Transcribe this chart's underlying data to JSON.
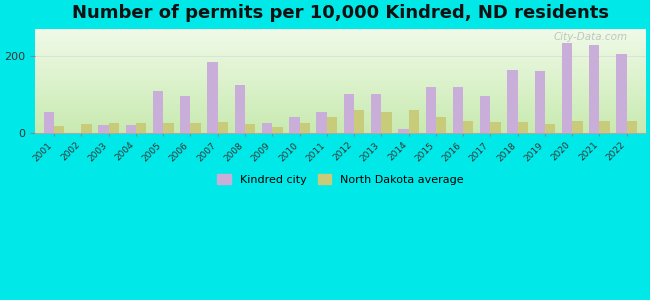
{
  "title": "Number of permits per 10,000 Kindred, ND residents",
  "years": [
    2001,
    2002,
    2003,
    2004,
    2005,
    2006,
    2007,
    2008,
    2009,
    2010,
    2011,
    2012,
    2013,
    2014,
    2015,
    2016,
    2017,
    2018,
    2019,
    2020,
    2021,
    2022
  ],
  "kindred": [
    55,
    0,
    20,
    20,
    110,
    95,
    185,
    125,
    25,
    40,
    55,
    100,
    100,
    10,
    120,
    120,
    95,
    165,
    160,
    235,
    230,
    205
  ],
  "nd_avg": [
    18,
    22,
    25,
    25,
    25,
    25,
    27,
    22,
    15,
    25,
    40,
    60,
    55,
    60,
    40,
    30,
    27,
    27,
    22,
    30,
    30,
    30
  ],
  "kindred_color": "#c9aed9",
  "nd_avg_color": "#c8cc7a",
  "background_outer": "#00e8e8",
  "grad_top": "#f0fae8",
  "grad_bottom": "#c8eab0",
  "grid_color": "#dddddd",
  "ylim": [
    0,
    270
  ],
  "bar_width": 0.38,
  "title_fontsize": 13,
  "legend_kindred": "Kindred city",
  "legend_nd": "North Dakota average",
  "watermark": "City-Data.com"
}
